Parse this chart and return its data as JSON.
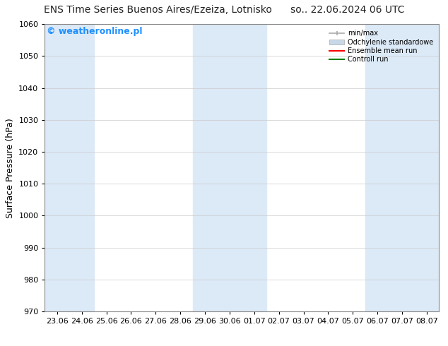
{
  "title_left": "ENS Time Series Buenos Aires/Ezeiza, Lotnisko",
  "title_right": "so.. 22.06.2024 06 UTC",
  "ylabel": "Surface Pressure (hPa)",
  "ylim": [
    970,
    1060
  ],
  "yticks": [
    970,
    980,
    990,
    1000,
    1010,
    1020,
    1030,
    1040,
    1050,
    1060
  ],
  "x_labels": [
    "23.06",
    "24.06",
    "25.06",
    "26.06",
    "27.06",
    "28.06",
    "29.06",
    "30.06",
    "01.07",
    "02.07",
    "03.07",
    "04.07",
    "05.07",
    "06.07",
    "07.07",
    "08.07"
  ],
  "shade_indices": [
    0,
    1,
    6,
    7,
    8,
    13,
    14,
    15
  ],
  "bg_color": "#ffffff",
  "shade_color": "#dce9f7",
  "watermark_text": "© weatheronline.pl",
  "watermark_color": "#1e90ff",
  "legend_labels": [
    "min/max",
    "Odchylenie standardowe",
    "Ensemble mean run",
    "Controll run"
  ],
  "legend_colors": [
    "#aaaaaa",
    "#c8d8e8",
    "#ff0000",
    "#008000"
  ],
  "title_fontsize": 10,
  "axis_label_fontsize": 9,
  "tick_fontsize": 8,
  "watermark_fontsize": 9
}
